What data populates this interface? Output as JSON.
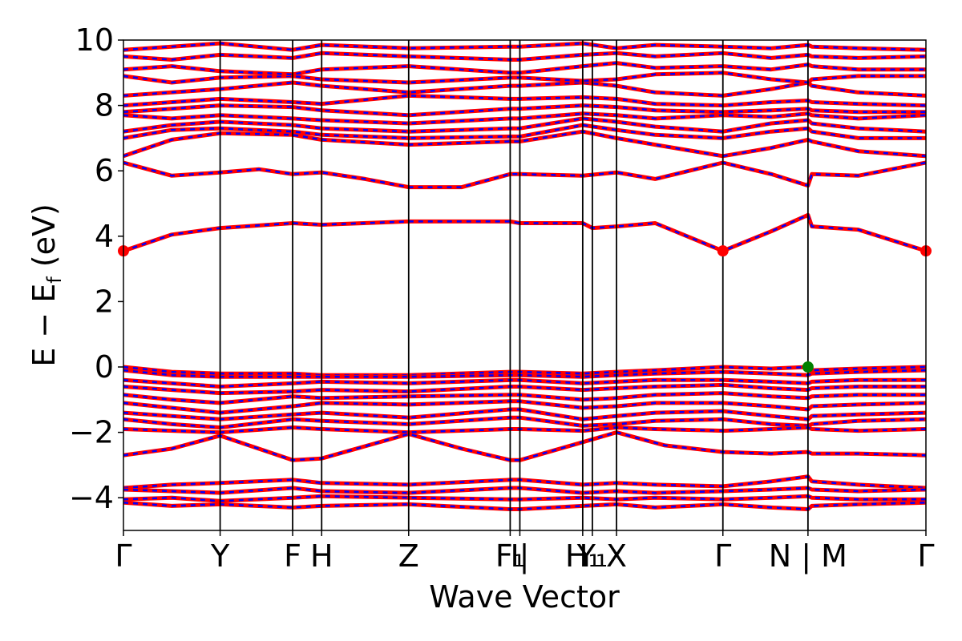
{
  "chart_data": {
    "type": "line",
    "xlabel": "Wave Vector",
    "ylabel_parts": {
      "main": "E − E",
      "sub": "f",
      "unit": " (eV)"
    },
    "ylim": [
      -5,
      10
    ],
    "yticks": [
      -4,
      -2,
      0,
      2,
      4,
      6,
      8,
      10
    ],
    "ytick_labels": [
      "−4",
      "−2",
      "0",
      "2",
      "4",
      "6",
      "8",
      "10"
    ],
    "xlim": [
      0,
      12.5
    ],
    "kpoints": [
      {
        "x": 0.0,
        "label": "Γ"
      },
      {
        "x": 1.0,
        "label": "Y"
      },
      {
        "x": 1.75,
        "label": "F"
      },
      {
        "x": 2.05,
        "label": "H"
      },
      {
        "x": 2.95,
        "label": "Z"
      },
      {
        "x": 4.0,
        "label": "F₁"
      },
      {
        "x": 4.1,
        "label": "I|"
      },
      {
        "x": 4.75,
        "label": "H₁"
      },
      {
        "x": 4.85,
        "label": "Y₁"
      },
      {
        "x": 5.1,
        "label": "X"
      },
      {
        "x": 6.2,
        "label": "Γ"
      },
      {
        "x": 7.08,
        "label": "N | M"
      },
      {
        "x": 8.3,
        "label": "Γ"
      }
    ],
    "band_colors": {
      "spin_up": "#ff0000",
      "spin_down": "#0000ff"
    },
    "bands": [
      {
        "x": [
          0,
          0.5,
          1.0,
          1.75,
          2.05,
          2.95,
          4.0,
          4.1,
          4.75,
          4.85,
          5.1,
          5.5,
          6.2,
          6.7,
          7.08,
          7.12,
          7.6,
          8.3
        ],
        "y": [
          3.55,
          4.05,
          4.25,
          4.4,
          4.35,
          4.45,
          4.45,
          4.4,
          4.4,
          4.25,
          4.3,
          4.4,
          3.55,
          4.15,
          4.65,
          4.3,
          4.2,
          3.55
        ]
      },
      {
        "x": [
          0,
          0.5,
          1.0,
          1.4,
          1.75,
          2.05,
          2.5,
          2.95,
          3.5,
          4.0,
          4.1,
          4.75,
          5.1,
          5.5,
          6.2,
          6.7,
          7.08,
          7.12,
          7.6,
          8.3
        ],
        "y": [
          6.25,
          5.85,
          5.95,
          6.05,
          5.9,
          5.95,
          5.75,
          5.5,
          5.5,
          5.9,
          5.9,
          5.85,
          5.95,
          5.75,
          6.25,
          5.9,
          5.55,
          5.9,
          5.85,
          6.25
        ]
      },
      {
        "x": [
          0,
          0.5,
          1.0,
          1.75,
          2.05,
          2.95,
          4.0,
          4.1,
          4.75,
          5.1,
          5.5,
          6.2,
          6.7,
          7.08,
          7.12,
          7.6,
          8.3
        ],
        "y": [
          6.45,
          6.95,
          7.15,
          7.1,
          6.95,
          6.8,
          6.9,
          6.9,
          7.2,
          7.0,
          6.8,
          6.45,
          6.7,
          6.95,
          6.9,
          6.6,
          6.45
        ]
      },
      {
        "x": [
          0,
          0.5,
          1.0,
          1.75,
          2.05,
          2.95,
          4.0,
          4.1,
          4.75,
          5.1,
          5.5,
          6.2,
          6.7,
          7.08,
          7.12,
          7.6,
          8.3
        ],
        "y": [
          7.0,
          7.25,
          7.3,
          7.2,
          7.1,
          7.0,
          7.05,
          7.05,
          7.4,
          7.25,
          7.1,
          7.0,
          7.2,
          7.3,
          7.2,
          7.0,
          7.0
        ]
      },
      {
        "x": [
          0,
          0.5,
          1.0,
          1.75,
          2.05,
          2.95,
          4.0,
          4.1,
          4.75,
          5.1,
          5.5,
          6.2,
          6.7,
          7.08,
          7.12,
          7.6,
          8.3
        ],
        "y": [
          7.2,
          7.4,
          7.5,
          7.4,
          7.3,
          7.2,
          7.3,
          7.3,
          7.6,
          7.5,
          7.35,
          7.2,
          7.45,
          7.55,
          7.45,
          7.3,
          7.2
        ]
      },
      {
        "x": [
          0,
          0.5,
          1.0,
          1.75,
          2.05,
          2.95,
          4.0,
          4.1,
          4.75,
          5.1,
          5.5,
          6.2,
          6.7,
          7.08,
          7.12,
          7.6,
          8.3
        ],
        "y": [
          7.7,
          7.6,
          7.7,
          7.6,
          7.55,
          7.45,
          7.6,
          7.6,
          7.75,
          7.7,
          7.6,
          7.7,
          7.65,
          7.75,
          7.7,
          7.6,
          7.7
        ]
      },
      {
        "x": [
          0,
          0.5,
          1.0,
          1.75,
          2.05,
          2.95,
          4.0,
          4.1,
          4.75,
          5.1,
          5.5,
          6.2,
          6.7,
          7.08,
          7.12,
          7.6,
          8.3
        ],
        "y": [
          7.8,
          7.9,
          8.0,
          7.95,
          7.85,
          7.7,
          7.9,
          7.9,
          8.0,
          7.95,
          7.85,
          7.8,
          7.85,
          7.9,
          7.85,
          7.8,
          7.8
        ]
      },
      {
        "x": [
          0,
          0.5,
          1.0,
          1.75,
          2.05,
          2.95,
          4.0,
          4.1,
          4.75,
          5.1,
          5.5,
          6.2,
          6.7,
          7.08,
          7.12,
          7.6,
          8.3
        ],
        "y": [
          8.0,
          8.1,
          8.2,
          8.1,
          8.05,
          8.3,
          8.2,
          8.2,
          8.25,
          8.2,
          8.05,
          8.0,
          8.1,
          8.15,
          8.1,
          8.05,
          8.0
        ]
      },
      {
        "x": [
          0,
          0.5,
          1.0,
          1.75,
          2.05,
          2.95,
          4.0,
          4.1,
          4.75,
          5.1,
          5.5,
          6.2,
          6.7,
          7.08,
          7.12,
          7.6,
          8.3
        ],
        "y": [
          8.3,
          8.4,
          8.5,
          8.7,
          8.6,
          8.4,
          8.6,
          8.6,
          8.7,
          8.6,
          8.4,
          8.3,
          8.5,
          8.7,
          8.6,
          8.4,
          8.3
        ]
      },
      {
        "x": [
          0,
          0.5,
          1.0,
          1.75,
          2.05,
          2.95,
          4.0,
          4.1,
          4.75,
          5.1,
          5.5,
          6.2,
          6.7,
          7.08,
          7.12,
          7.6,
          8.3
        ],
        "y": [
          8.9,
          8.7,
          8.85,
          8.9,
          8.8,
          8.7,
          8.85,
          8.85,
          8.75,
          8.8,
          8.95,
          9.0,
          8.8,
          8.7,
          8.8,
          8.9,
          8.9
        ]
      },
      {
        "x": [
          0,
          0.5,
          1.0,
          1.75,
          2.05,
          2.95,
          4.0,
          4.1,
          4.75,
          5.1,
          5.5,
          6.2,
          6.7,
          7.08,
          7.12,
          7.6,
          8.3
        ],
        "y": [
          9.1,
          9.2,
          9.05,
          8.95,
          9.1,
          9.2,
          9.0,
          9.0,
          9.2,
          9.3,
          9.15,
          9.2,
          9.1,
          9.25,
          9.2,
          9.1,
          9.1
        ]
      },
      {
        "x": [
          0,
          0.5,
          1.0,
          1.75,
          2.05,
          2.95,
          4.0,
          4.1,
          4.75,
          5.1,
          5.5,
          6.2,
          6.7,
          7.08,
          7.12,
          7.6,
          8.3
        ],
        "y": [
          9.5,
          9.4,
          9.55,
          9.45,
          9.6,
          9.5,
          9.4,
          9.4,
          9.55,
          9.6,
          9.5,
          9.6,
          9.45,
          9.55,
          9.5,
          9.45,
          9.5
        ]
      },
      {
        "x": [
          0,
          0.5,
          1.0,
          1.75,
          2.05,
          2.95,
          4.0,
          4.1,
          4.75,
          5.1,
          5.5,
          6.2,
          6.7,
          7.08,
          7.12,
          7.6,
          8.3
        ],
        "y": [
          9.7,
          9.8,
          9.9,
          9.7,
          9.85,
          9.75,
          9.8,
          9.8,
          9.9,
          9.75,
          9.85,
          9.8,
          9.75,
          9.85,
          9.8,
          9.75,
          9.7
        ]
      },
      {
        "x": [
          0,
          0.5,
          1.0,
          1.75,
          2.05,
          2.95,
          4.0,
          4.1,
          4.75,
          5.1,
          5.5,
          6.2,
          6.7,
          7.08,
          7.12,
          7.6,
          8.3
        ],
        "y": [
          0.0,
          -0.15,
          -0.2,
          -0.2,
          -0.25,
          -0.25,
          -0.15,
          -0.15,
          -0.2,
          -0.15,
          -0.1,
          0.0,
          -0.05,
          0.0,
          -0.1,
          -0.05,
          0.0
        ]
      },
      {
        "x": [
          0,
          0.5,
          1.0,
          1.75,
          2.05,
          2.95,
          4.0,
          4.1,
          4.75,
          5.1,
          5.5,
          6.2,
          6.7,
          7.08,
          7.12,
          7.6,
          8.3
        ],
        "y": [
          -0.1,
          -0.25,
          -0.3,
          -0.3,
          -0.3,
          -0.3,
          -0.25,
          -0.25,
          -0.3,
          -0.25,
          -0.2,
          -0.15,
          -0.2,
          -0.25,
          -0.2,
          -0.15,
          -0.1
        ]
      },
      {
        "x": [
          0,
          0.5,
          1.0,
          1.75,
          2.05,
          2.95,
          4.0,
          4.1,
          4.75,
          5.1,
          5.5,
          6.2,
          6.7,
          7.08,
          7.12,
          7.6,
          8.3
        ],
        "y": [
          -0.4,
          -0.5,
          -0.6,
          -0.5,
          -0.45,
          -0.5,
          -0.4,
          -0.4,
          -0.5,
          -0.45,
          -0.4,
          -0.4,
          -0.45,
          -0.5,
          -0.45,
          -0.4,
          -0.4
        ]
      },
      {
        "x": [
          0,
          0.5,
          1.0,
          1.75,
          2.05,
          2.95,
          4.0,
          4.1,
          4.75,
          5.1,
          5.5,
          6.2,
          6.7,
          7.08,
          7.12,
          7.6,
          8.3
        ],
        "y": [
          -0.6,
          -0.7,
          -0.8,
          -0.75,
          -0.7,
          -0.75,
          -0.6,
          -0.6,
          -0.7,
          -0.65,
          -0.6,
          -0.55,
          -0.65,
          -0.7,
          -0.65,
          -0.6,
          -0.6
        ]
      },
      {
        "x": [
          0,
          0.5,
          1.0,
          1.75,
          2.05,
          2.95,
          4.0,
          4.1,
          4.75,
          5.1,
          5.5,
          6.2,
          6.7,
          7.08,
          7.12,
          7.6,
          8.3
        ],
        "y": [
          -0.85,
          -1.0,
          -1.1,
          -0.9,
          -0.95,
          -0.9,
          -0.85,
          -0.85,
          -1.0,
          -0.95,
          -0.85,
          -0.8,
          -0.9,
          -0.95,
          -0.9,
          -0.85,
          -0.85
        ]
      },
      {
        "x": [
          0,
          0.5,
          1.0,
          1.75,
          2.05,
          2.95,
          4.0,
          4.1,
          4.75,
          5.1,
          5.5,
          6.2,
          6.7,
          7.08,
          7.12,
          7.6,
          8.3
        ],
        "y": [
          -1.1,
          -1.25,
          -1.4,
          -1.2,
          -1.1,
          -1.15,
          -1.05,
          -1.05,
          -1.25,
          -1.2,
          -1.1,
          -1.1,
          -1.2,
          -1.3,
          -1.2,
          -1.15,
          -1.1
        ]
      },
      {
        "x": [
          0,
          0.5,
          1.0,
          1.75,
          2.05,
          2.95,
          4.0,
          4.1,
          4.75,
          5.1,
          5.5,
          6.2,
          6.7,
          7.08,
          7.12,
          7.6,
          8.3
        ],
        "y": [
          -1.4,
          -1.5,
          -1.6,
          -1.45,
          -1.4,
          -1.55,
          -1.3,
          -1.3,
          -1.6,
          -1.5,
          -1.4,
          -1.35,
          -1.5,
          -1.6,
          -1.5,
          -1.45,
          -1.4
        ]
      },
      {
        "x": [
          0,
          0.5,
          1.0,
          1.75,
          2.05,
          2.95,
          4.0,
          4.1,
          4.75,
          5.1,
          5.5,
          6.2,
          6.7,
          7.08,
          7.12,
          7.6,
          8.3
        ],
        "y": [
          -1.6,
          -1.75,
          -1.85,
          -1.6,
          -1.65,
          -1.75,
          -1.55,
          -1.55,
          -1.8,
          -1.75,
          -1.65,
          -1.6,
          -1.75,
          -1.8,
          -1.75,
          -1.65,
          -1.6
        ]
      },
      {
        "x": [
          0,
          0.5,
          1.0,
          1.75,
          2.05,
          2.95,
          4.0,
          4.1,
          4.75,
          5.1,
          5.5,
          6.2,
          6.7,
          7.08,
          7.12,
          7.6,
          8.3
        ],
        "y": [
          -1.9,
          -1.95,
          -2.0,
          -1.85,
          -1.9,
          -2.0,
          -1.9,
          -1.9,
          -1.95,
          -1.85,
          -1.9,
          -1.95,
          -1.9,
          -1.85,
          -1.9,
          -1.95,
          -1.9
        ]
      },
      {
        "x": [
          0,
          0.5,
          1.0,
          1.4,
          1.75,
          2.05,
          2.95,
          3.5,
          4.0,
          4.1,
          4.75,
          5.1,
          5.6,
          6.2,
          6.7,
          7.08,
          7.12,
          7.6,
          8.3
        ],
        "y": [
          -2.7,
          -2.5,
          -2.1,
          -2.5,
          -2.85,
          -2.8,
          -2.05,
          -2.5,
          -2.85,
          -2.85,
          -2.3,
          -2.0,
          -2.4,
          -2.6,
          -2.65,
          -2.6,
          -2.65,
          -2.65,
          -2.7
        ]
      },
      {
        "x": [
          0,
          0.5,
          1.0,
          1.75,
          2.05,
          2.95,
          4.0,
          4.1,
          4.75,
          5.1,
          5.5,
          6.2,
          6.7,
          7.08,
          7.12,
          7.6,
          8.3
        ],
        "y": [
          -3.7,
          -3.6,
          -3.55,
          -3.45,
          -3.55,
          -3.6,
          -3.45,
          -3.45,
          -3.6,
          -3.55,
          -3.6,
          -3.65,
          -3.5,
          -3.35,
          -3.5,
          -3.6,
          -3.7
        ]
      },
      {
        "x": [
          0,
          0.5,
          1.0,
          1.75,
          2.05,
          2.95,
          4.0,
          4.1,
          4.75,
          5.1,
          5.5,
          6.2,
          6.7,
          7.08,
          7.12,
          7.6,
          8.3
        ],
        "y": [
          -3.75,
          -3.8,
          -3.85,
          -3.7,
          -3.8,
          -3.85,
          -3.7,
          -3.7,
          -3.85,
          -3.8,
          -3.85,
          -3.8,
          -3.75,
          -3.7,
          -3.75,
          -3.8,
          -3.75
        ]
      },
      {
        "x": [
          0,
          0.5,
          1.0,
          1.75,
          2.05,
          2.95,
          4.0,
          4.1,
          4.75,
          5.1,
          5.5,
          6.2,
          6.7,
          7.08,
          7.12,
          7.6,
          8.3
        ],
        "y": [
          -4.05,
          -4.0,
          -4.1,
          -4.0,
          -3.95,
          -4.0,
          -4.05,
          -4.05,
          -4.0,
          -4.05,
          -4.0,
          -4.05,
          -4.0,
          -3.95,
          -4.0,
          -4.05,
          -4.05
        ]
      },
      {
        "x": [
          0,
          0.5,
          1.0,
          1.75,
          2.05,
          2.95,
          4.0,
          4.1,
          4.75,
          5.1,
          5.5,
          6.2,
          6.7,
          7.08,
          7.12,
          7.6,
          8.3
        ],
        "y": [
          -4.15,
          -4.25,
          -4.2,
          -4.3,
          -4.25,
          -4.2,
          -4.35,
          -4.35,
          -4.25,
          -4.2,
          -4.3,
          -4.2,
          -4.3,
          -4.35,
          -4.25,
          -4.2,
          -4.15
        ]
      }
    ],
    "markers": [
      {
        "name": "cbm",
        "x": 0.0,
        "y": 3.55,
        "color": "#ff0000"
      },
      {
        "name": "cbm",
        "x": 6.2,
        "y": 3.55,
        "color": "#ff0000"
      },
      {
        "name": "cbm",
        "x": 8.3,
        "y": 3.55,
        "color": "#ff0000"
      },
      {
        "name": "vbm",
        "x": 7.08,
        "y": 0.0,
        "color": "#008000"
      }
    ]
  }
}
